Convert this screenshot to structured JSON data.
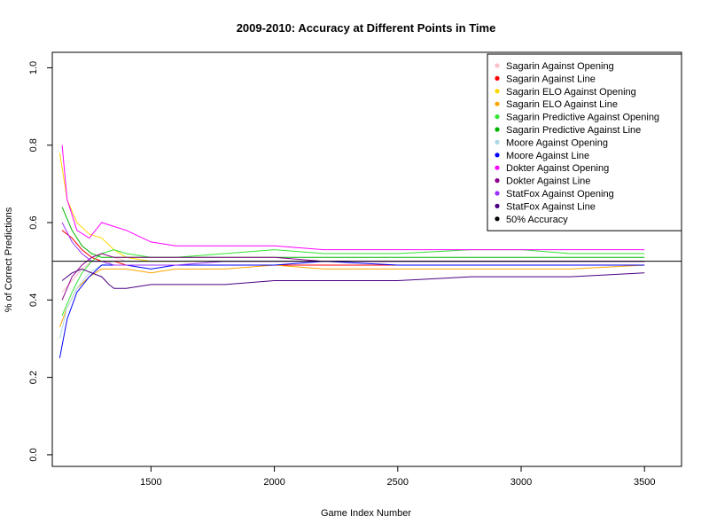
{
  "chart_data": {
    "type": "line",
    "title": "2009-2010: Accuracy at Different Points in Time",
    "xlabel": "Game Index Number",
    "ylabel": "% of Correct Predictions",
    "xlim": [
      1100,
      3650
    ],
    "ylim": [
      -0.03,
      1.04
    ],
    "xticks": [
      1500,
      2000,
      2500,
      3000,
      3500
    ],
    "xtick_labels": [
      "1500",
      "2000",
      "2500",
      "3000",
      "3500"
    ],
    "yticks": [
      0.0,
      0.2,
      0.4,
      0.6,
      0.8,
      1.0
    ],
    "ytick_labels": [
      "0.0",
      "0.2",
      "0.4",
      "0.6",
      "0.8",
      "1.0"
    ],
    "legend_position": "top-right",
    "reference_line": {
      "name": "50% Accuracy",
      "y": 0.5,
      "color": "#000000"
    },
    "series": [
      {
        "name": "Sagarin Against Opening",
        "color": "#FFC0CB",
        "x": [
          1140,
          1180,
          1220,
          1260,
          1300,
          1350,
          1400,
          1500,
          1600,
          1800,
          2000,
          2200,
          2500,
          2800,
          3000,
          3200,
          3500
        ],
        "y": [
          0.42,
          0.45,
          0.48,
          0.5,
          0.52,
          0.51,
          0.5,
          0.5,
          0.5,
          0.5,
          0.5,
          0.5,
          0.5,
          0.5,
          0.5,
          0.5,
          0.5
        ]
      },
      {
        "name": "Sagarin Against Line",
        "color": "#FF0000",
        "x": [
          1140,
          1180,
          1220,
          1260,
          1300,
          1350,
          1400,
          1500,
          1600,
          1800,
          2000,
          2200,
          2500,
          2800,
          3000,
          3200,
          3500
        ],
        "y": [
          0.58,
          0.56,
          0.53,
          0.51,
          0.5,
          0.5,
          0.49,
          0.49,
          0.49,
          0.49,
          0.49,
          0.49,
          0.49,
          0.49,
          0.49,
          0.49,
          0.49
        ]
      },
      {
        "name": "Sagarin ELO Against Opening",
        "color": "#FFD700",
        "x": [
          1130,
          1160,
          1200,
          1250,
          1300,
          1350,
          1400,
          1500,
          1600,
          1800,
          2000,
          2200,
          2500,
          2800,
          3000,
          3200,
          3500
        ],
        "y": [
          0.78,
          0.66,
          0.6,
          0.57,
          0.56,
          0.53,
          0.51,
          0.5,
          0.5,
          0.5,
          0.5,
          0.5,
          0.5,
          0.5,
          0.5,
          0.5,
          0.5
        ]
      },
      {
        "name": "Sagarin ELO Against Line",
        "color": "#FFA500",
        "x": [
          1130,
          1160,
          1200,
          1250,
          1300,
          1350,
          1400,
          1500,
          1600,
          1800,
          2000,
          2200,
          2500,
          2800,
          3000,
          3200,
          3500
        ],
        "y": [
          0.33,
          0.38,
          0.43,
          0.46,
          0.48,
          0.48,
          0.48,
          0.47,
          0.48,
          0.48,
          0.49,
          0.48,
          0.48,
          0.48,
          0.48,
          0.48,
          0.49
        ]
      },
      {
        "name": "Sagarin Predictive Against Opening",
        "color": "#32E632",
        "x": [
          1140,
          1180,
          1220,
          1260,
          1300,
          1350,
          1400,
          1500,
          1600,
          1800,
          2000,
          2200,
          2500,
          2800,
          3000,
          3200,
          3500
        ],
        "y": [
          0.36,
          0.42,
          0.47,
          0.5,
          0.52,
          0.53,
          0.52,
          0.51,
          0.51,
          0.52,
          0.53,
          0.52,
          0.52,
          0.53,
          0.53,
          0.52,
          0.52
        ]
      },
      {
        "name": "Sagarin Predictive Against Line",
        "color": "#00B400",
        "x": [
          1140,
          1180,
          1220,
          1260,
          1300,
          1350,
          1400,
          1500,
          1600,
          1800,
          2000,
          2200,
          2500,
          2800,
          3000,
          3200,
          3500
        ],
        "y": [
          0.64,
          0.58,
          0.54,
          0.52,
          0.51,
          0.51,
          0.51,
          0.51,
          0.51,
          0.51,
          0.51,
          0.51,
          0.51,
          0.51,
          0.51,
          0.51,
          0.51
        ]
      },
      {
        "name": "Moore Against Opening",
        "color": "#ADD8E6",
        "x": [
          1130,
          1160,
          1200,
          1250,
          1300,
          1350,
          1400,
          1500,
          1600,
          1800,
          2000,
          2200,
          2500,
          2800,
          3000,
          3200,
          3500
        ],
        "y": [
          0.3,
          0.38,
          0.43,
          0.47,
          0.49,
          0.5,
          0.5,
          0.5,
          0.5,
          0.5,
          0.5,
          0.5,
          0.5,
          0.5,
          0.5,
          0.5,
          0.5
        ]
      },
      {
        "name": "Moore Against Line",
        "color": "#0000FF",
        "x": [
          1130,
          1160,
          1200,
          1250,
          1300,
          1350,
          1400,
          1500,
          1600,
          1800,
          2000,
          2200,
          2500,
          2800,
          3000,
          3200,
          3500
        ],
        "y": [
          0.25,
          0.35,
          0.42,
          0.46,
          0.49,
          0.49,
          0.49,
          0.48,
          0.49,
          0.49,
          0.49,
          0.5,
          0.49,
          0.49,
          0.49,
          0.49,
          0.49
        ]
      },
      {
        "name": "Dokter Against Opening",
        "color": "#FF00FF",
        "x": [
          1140,
          1160,
          1180,
          1200,
          1250,
          1300,
          1350,
          1400,
          1500,
          1600,
          1800,
          2000,
          2200,
          2500,
          2800,
          3000,
          3200,
          3500
        ],
        "y": [
          0.8,
          0.66,
          0.62,
          0.58,
          0.56,
          0.6,
          0.59,
          0.58,
          0.55,
          0.54,
          0.54,
          0.54,
          0.53,
          0.53,
          0.53,
          0.53,
          0.53,
          0.53
        ]
      },
      {
        "name": "Dokter Against Line",
        "color": "#8B008B",
        "x": [
          1140,
          1180,
          1220,
          1260,
          1300,
          1350,
          1400,
          1500,
          1600,
          1800,
          2000,
          2200,
          2500,
          2800,
          3000,
          3200,
          3500
        ],
        "y": [
          0.4,
          0.46,
          0.49,
          0.51,
          0.52,
          0.51,
          0.51,
          0.51,
          0.51,
          0.51,
          0.51,
          0.5,
          0.5,
          0.5,
          0.5,
          0.5,
          0.5
        ]
      },
      {
        "name": "StatFox Against Opening",
        "color": "#9B30FF",
        "x": [
          1140,
          1180,
          1220,
          1260,
          1300,
          1350,
          1400,
          1500,
          1600,
          1800,
          2000,
          2200,
          2500,
          2800,
          3000,
          3200,
          3500
        ],
        "y": [
          0.6,
          0.55,
          0.52,
          0.5,
          0.5,
          0.49,
          0.49,
          0.49,
          0.49,
          0.5,
          0.5,
          0.5,
          0.5,
          0.5,
          0.5,
          0.5,
          0.5
        ]
      },
      {
        "name": "StatFox Against Line",
        "color": "#4B0082",
        "x": [
          1140,
          1180,
          1220,
          1260,
          1300,
          1330,
          1350,
          1400,
          1500,
          1600,
          1800,
          2000,
          2200,
          2500,
          2800,
          3000,
          3200,
          3500
        ],
        "y": [
          0.45,
          0.47,
          0.48,
          0.47,
          0.46,
          0.44,
          0.43,
          0.43,
          0.44,
          0.44,
          0.44,
          0.45,
          0.45,
          0.45,
          0.46,
          0.46,
          0.46,
          0.47
        ]
      }
    ]
  }
}
